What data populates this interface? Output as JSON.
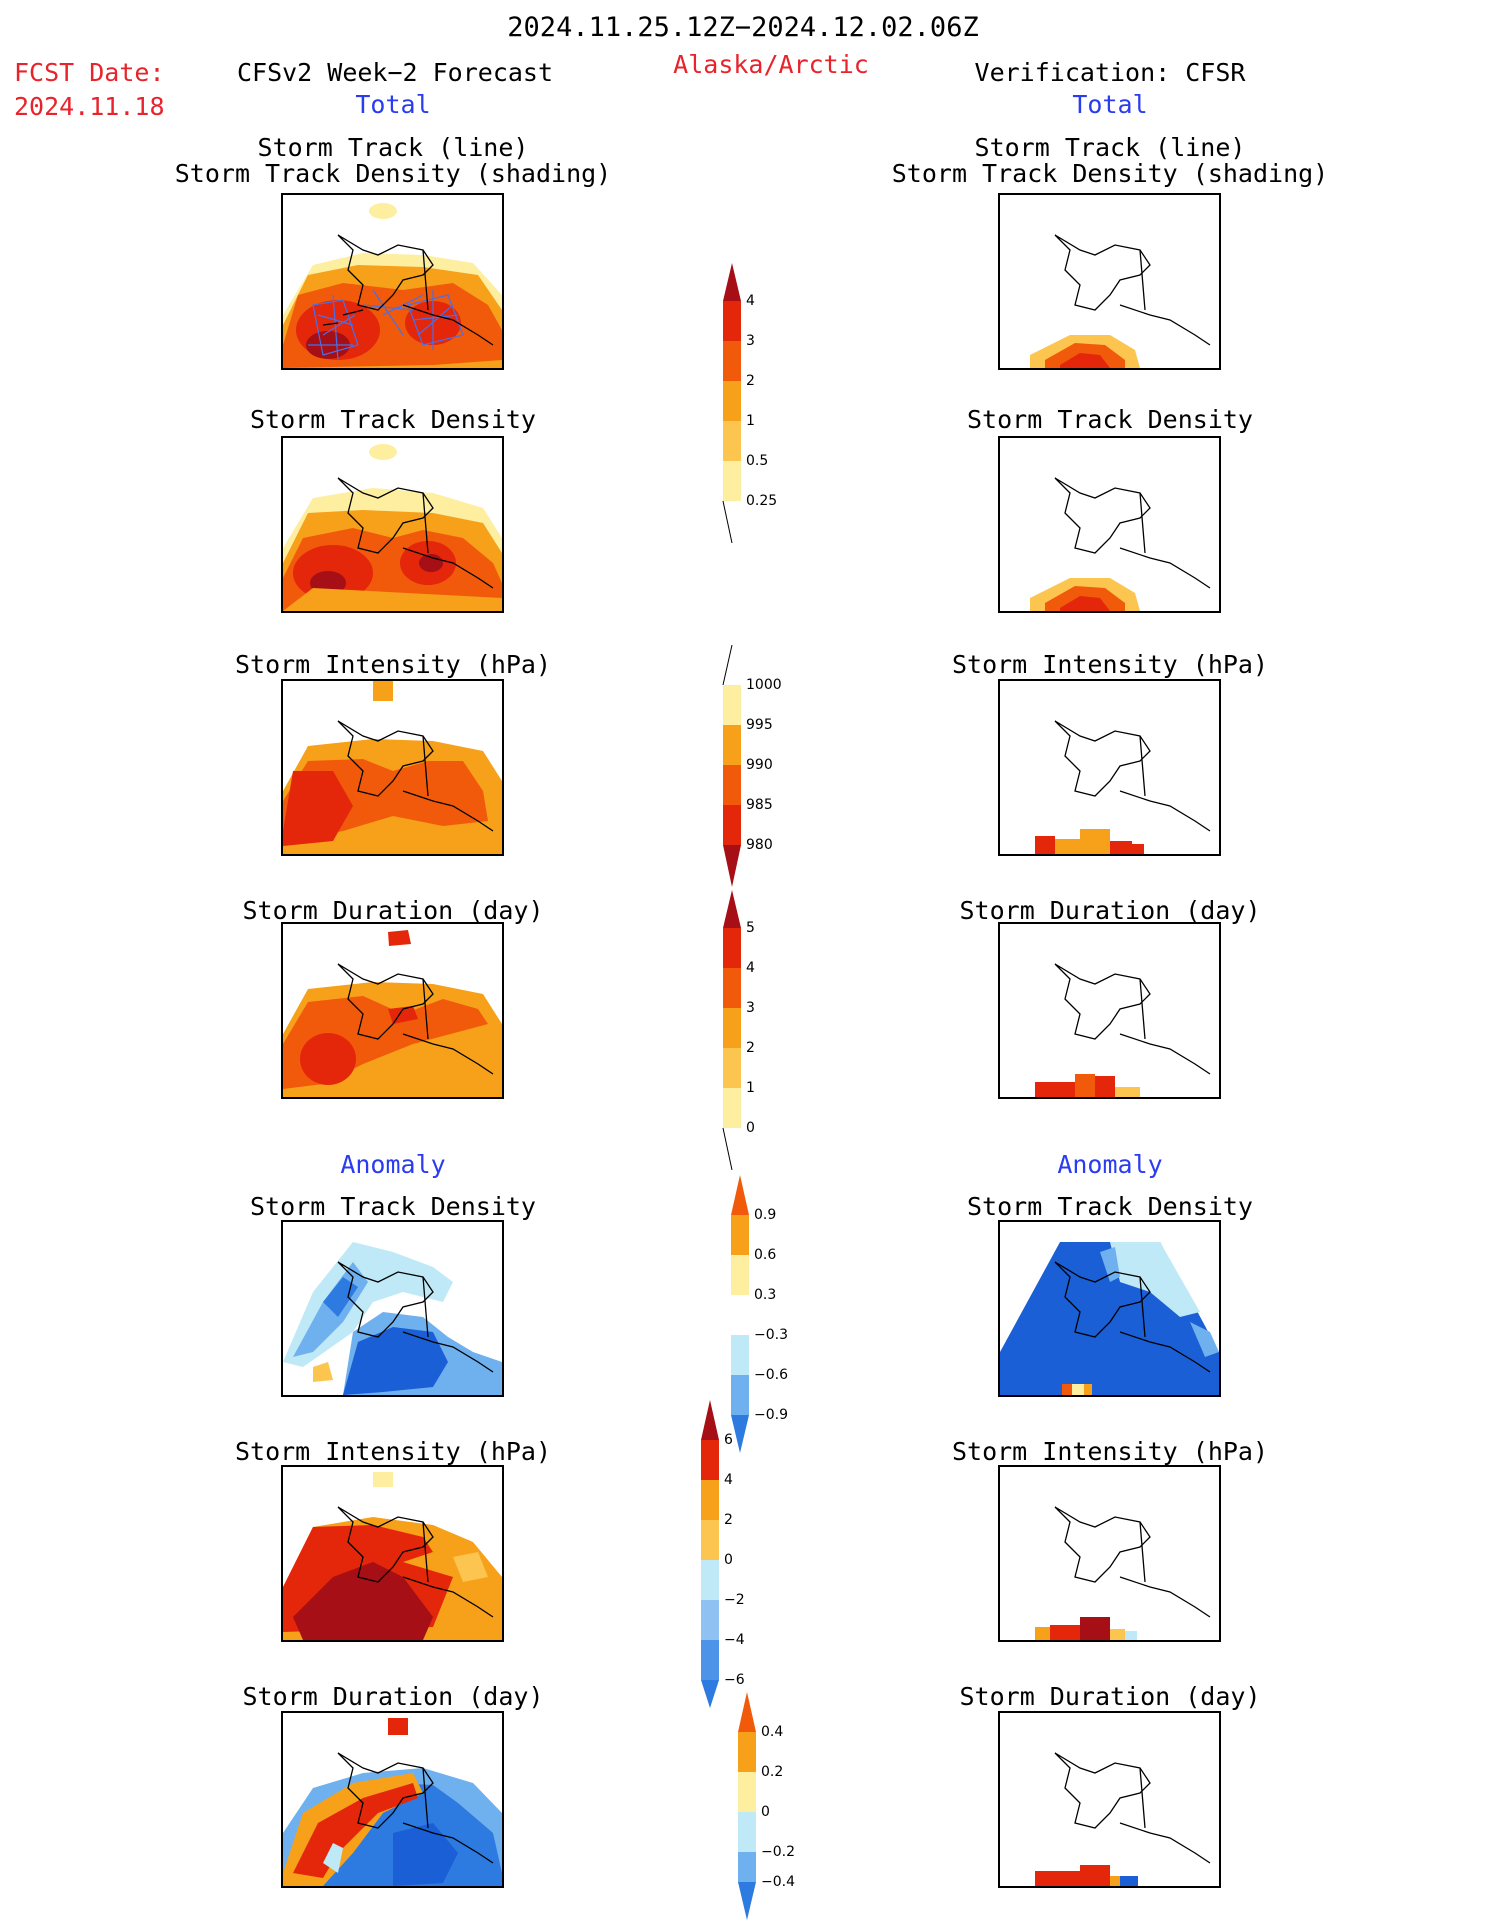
{
  "header": {
    "period": "2024.11.25.12Z−2024.12.02.06Z",
    "region": "Alaska/Arctic",
    "fcst_label": "FCST Date:",
    "fcst_date": "2024.11.18",
    "left_title": "CFSv2 Week−2 Forecast",
    "right_title": "Verification: CFSR",
    "total_label": "Total",
    "anomaly_label": "Anomaly"
  },
  "panels": {
    "track_line_1": "Storm Track (line)",
    "track_line_2": "Storm Track Density (shading)",
    "density": "Storm Track Density",
    "intensity": "Storm Intensity (hPa)",
    "duration": "Storm Duration (day)"
  },
  "colorbars": {
    "density_total": [
      "0.25",
      "0.5",
      "1",
      "2",
      "3",
      "4"
    ],
    "intensity_total": [
      "1000",
      "995",
      "990",
      "985",
      "980"
    ],
    "duration_total": [
      "0",
      "1",
      "2",
      "3",
      "4",
      "5"
    ],
    "density_anom": [
      "0.9",
      "0.6",
      "0.3",
      "−0.3",
      "−0.6",
      "−0.9"
    ],
    "intensity_anom": [
      "6",
      "4",
      "2",
      "0",
      "−2",
      "−4",
      "−6"
    ],
    "duration_anom": [
      "0.4",
      "0.2",
      "0",
      "−0.2",
      "−0.4"
    ]
  },
  "colors": {
    "dark_red": "#a50f15",
    "red": "#e4260b",
    "orange_red": "#f15a0a",
    "orange": "#f7a01a",
    "light_orange": "#fbc550",
    "yellow": "#fdeea0",
    "light_blue": "#bfe9f7",
    "mid_blue": "#6fb0ee",
    "blue": "#2d7ae0",
    "dark_blue": "#1a5fd6"
  }
}
